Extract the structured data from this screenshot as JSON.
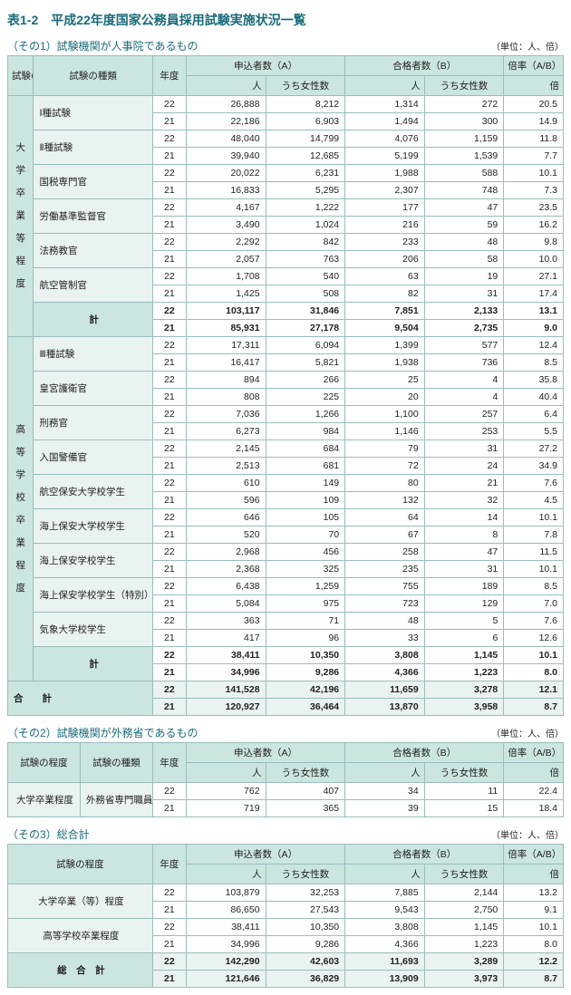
{
  "title": "表1-2　平成22年度国家公務員採用試験実施状況一覧",
  "unit": "（単位：人、倍）",
  "sections": {
    "s1": {
      "label": "（その1）試験機関が人事院であるもの"
    },
    "s2": {
      "label": "（その2）試験機関が外務省であるもの"
    },
    "s3": {
      "label": "（その3）総合計"
    }
  },
  "head": {
    "level": "試験の\n程　度",
    "type": "試験の種類",
    "year": "年度",
    "app": "申込者数（A）",
    "pass": "合格者数（B）",
    "ratio": "倍率（A/B）",
    "ppl": "人",
    "fem": "うち女性数",
    "times": "倍"
  },
  "head2": {
    "level": "試験の程度"
  },
  "head3": {
    "level": "試験の程度"
  },
  "t1": {
    "g1": {
      "label": "大　学　卒　業　等　程　度",
      "rows": [
        {
          "n": "Ⅰ種試験",
          "y": "22",
          "a": "26,888",
          "af": "8,212",
          "b": "1,314",
          "bf": "272",
          "r": "20.5"
        },
        {
          "n": "",
          "y": "21",
          "a": "22,186",
          "af": "6,903",
          "b": "1,494",
          "bf": "300",
          "r": "14.9"
        },
        {
          "n": "Ⅱ種試験",
          "y": "22",
          "a": "48,040",
          "af": "14,799",
          "b": "4,076",
          "bf": "1,159",
          "r": "11.8"
        },
        {
          "n": "",
          "y": "21",
          "a": "39,940",
          "af": "12,685",
          "b": "5,199",
          "bf": "1,539",
          "r": "7.7"
        },
        {
          "n": "国税専門官",
          "y": "22",
          "a": "20,022",
          "af": "6,231",
          "b": "1,988",
          "bf": "588",
          "r": "10.1"
        },
        {
          "n": "",
          "y": "21",
          "a": "16,833",
          "af": "5,295",
          "b": "2,307",
          "bf": "748",
          "r": "7.3"
        },
        {
          "n": "労働基準監督官",
          "y": "22",
          "a": "4,167",
          "af": "1,222",
          "b": "177",
          "bf": "47",
          "r": "23.5"
        },
        {
          "n": "",
          "y": "21",
          "a": "3,490",
          "af": "1,024",
          "b": "216",
          "bf": "59",
          "r": "16.2"
        },
        {
          "n": "法務教官",
          "y": "22",
          "a": "2,292",
          "af": "842",
          "b": "233",
          "bf": "48",
          "r": "9.8"
        },
        {
          "n": "",
          "y": "21",
          "a": "2,057",
          "af": "763",
          "b": "206",
          "bf": "58",
          "r": "10.0"
        },
        {
          "n": "航空管制官",
          "y": "22",
          "a": "1,708",
          "af": "540",
          "b": "63",
          "bf": "19",
          "r": "27.1"
        },
        {
          "n": "",
          "y": "21",
          "a": "1,425",
          "af": "508",
          "b": "82",
          "bf": "31",
          "r": "17.4"
        }
      ],
      "sub": [
        {
          "n": "計",
          "y": "22",
          "a": "103,117",
          "af": "31,846",
          "b": "7,851",
          "bf": "2,133",
          "r": "13.1"
        },
        {
          "n": "",
          "y": "21",
          "a": "85,931",
          "af": "27,178",
          "b": "9,504",
          "bf": "2,735",
          "r": "9.0"
        }
      ]
    },
    "g2": {
      "label": "高　等　学　校　卒　業　程　度",
      "rows": [
        {
          "n": "Ⅲ種試験",
          "y": "22",
          "a": "17,311",
          "af": "6,094",
          "b": "1,399",
          "bf": "577",
          "r": "12.4"
        },
        {
          "n": "",
          "y": "21",
          "a": "16,417",
          "af": "5,821",
          "b": "1,938",
          "bf": "736",
          "r": "8.5"
        },
        {
          "n": "皇宮護衛官",
          "y": "22",
          "a": "894",
          "af": "266",
          "b": "25",
          "bf": "4",
          "r": "35.8"
        },
        {
          "n": "",
          "y": "21",
          "a": "808",
          "af": "225",
          "b": "20",
          "bf": "4",
          "r": "40.4"
        },
        {
          "n": "刑務官",
          "y": "22",
          "a": "7,036",
          "af": "1,266",
          "b": "1,100",
          "bf": "257",
          "r": "6.4"
        },
        {
          "n": "",
          "y": "21",
          "a": "6,273",
          "af": "984",
          "b": "1,146",
          "bf": "253",
          "r": "5.5"
        },
        {
          "n": "入国警備官",
          "y": "22",
          "a": "2,145",
          "af": "684",
          "b": "79",
          "bf": "31",
          "r": "27.2"
        },
        {
          "n": "",
          "y": "21",
          "a": "2,513",
          "af": "681",
          "b": "72",
          "bf": "24",
          "r": "34.9"
        },
        {
          "n": "航空保安大学校学生",
          "y": "22",
          "a": "610",
          "af": "149",
          "b": "80",
          "bf": "21",
          "r": "7.6"
        },
        {
          "n": "",
          "y": "21",
          "a": "596",
          "af": "109",
          "b": "132",
          "bf": "32",
          "r": "4.5"
        },
        {
          "n": "海上保安大学校学生",
          "y": "22",
          "a": "646",
          "af": "105",
          "b": "64",
          "bf": "14",
          "r": "10.1"
        },
        {
          "n": "",
          "y": "21",
          "a": "520",
          "af": "70",
          "b": "67",
          "bf": "8",
          "r": "7.8"
        },
        {
          "n": "海上保安学校学生",
          "y": "22",
          "a": "2,968",
          "af": "456",
          "b": "258",
          "bf": "47",
          "r": "11.5"
        },
        {
          "n": "",
          "y": "21",
          "a": "2,368",
          "af": "325",
          "b": "235",
          "bf": "31",
          "r": "10.1"
        },
        {
          "n": "海上保安学校学生（特別）",
          "y": "22",
          "a": "6,438",
          "af": "1,259",
          "b": "755",
          "bf": "189",
          "r": "8.5"
        },
        {
          "n": "",
          "y": "21",
          "a": "5,084",
          "af": "975",
          "b": "723",
          "bf": "129",
          "r": "7.0"
        },
        {
          "n": "気象大学校学生",
          "y": "22",
          "a": "363",
          "af": "71",
          "b": "48",
          "bf": "5",
          "r": "7.6"
        },
        {
          "n": "",
          "y": "21",
          "a": "417",
          "af": "96",
          "b": "33",
          "bf": "6",
          "r": "12.6"
        }
      ],
      "sub": [
        {
          "n": "計",
          "y": "22",
          "a": "38,411",
          "af": "10,350",
          "b": "3,808",
          "bf": "1,145",
          "r": "10.1"
        },
        {
          "n": "",
          "y": "21",
          "a": "34,996",
          "af": "9,286",
          "b": "4,366",
          "bf": "1,223",
          "r": "8.0"
        }
      ]
    },
    "total": [
      {
        "n": "合　　計",
        "y": "22",
        "a": "141,528",
        "af": "42,196",
        "b": "11,659",
        "bf": "3,278",
        "r": "12.1"
      },
      {
        "n": "",
        "y": "21",
        "a": "120,927",
        "af": "36,464",
        "b": "13,870",
        "bf": "3,958",
        "r": "8.7"
      }
    ]
  },
  "t2": {
    "rows": [
      {
        "lvl": "大学卒業程度",
        "n": "外務省専門職員",
        "y": "22",
        "a": "762",
        "af": "407",
        "b": "34",
        "bf": "11",
        "r": "22.4"
      },
      {
        "lvl": "",
        "n": "",
        "y": "21",
        "a": "719",
        "af": "365",
        "b": "39",
        "bf": "15",
        "r": "18.4"
      }
    ]
  },
  "t3": {
    "rows": [
      {
        "n": "大学卒業（等）程度",
        "y": "22",
        "a": "103,879",
        "af": "32,253",
        "b": "7,885",
        "bf": "2,144",
        "r": "13.2"
      },
      {
        "n": "",
        "y": "21",
        "a": "86,650",
        "af": "27,543",
        "b": "9,543",
        "bf": "2,750",
        "r": "9.1"
      },
      {
        "n": "高等学校卒業程度",
        "y": "22",
        "a": "38,411",
        "af": "10,350",
        "b": "3,808",
        "bf": "1,145",
        "r": "10.1"
      },
      {
        "n": "",
        "y": "21",
        "a": "34,996",
        "af": "9,286",
        "b": "4,366",
        "bf": "1,223",
        "r": "8.0"
      }
    ],
    "total": [
      {
        "n": "総　合　計",
        "y": "22",
        "a": "142,290",
        "af": "42,603",
        "b": "11,693",
        "bf": "3,289",
        "r": "12.2"
      },
      {
        "n": "",
        "y": "21",
        "a": "121,646",
        "af": "36,829",
        "b": "13,909",
        "bf": "3,973",
        "r": "8.7"
      }
    ]
  }
}
